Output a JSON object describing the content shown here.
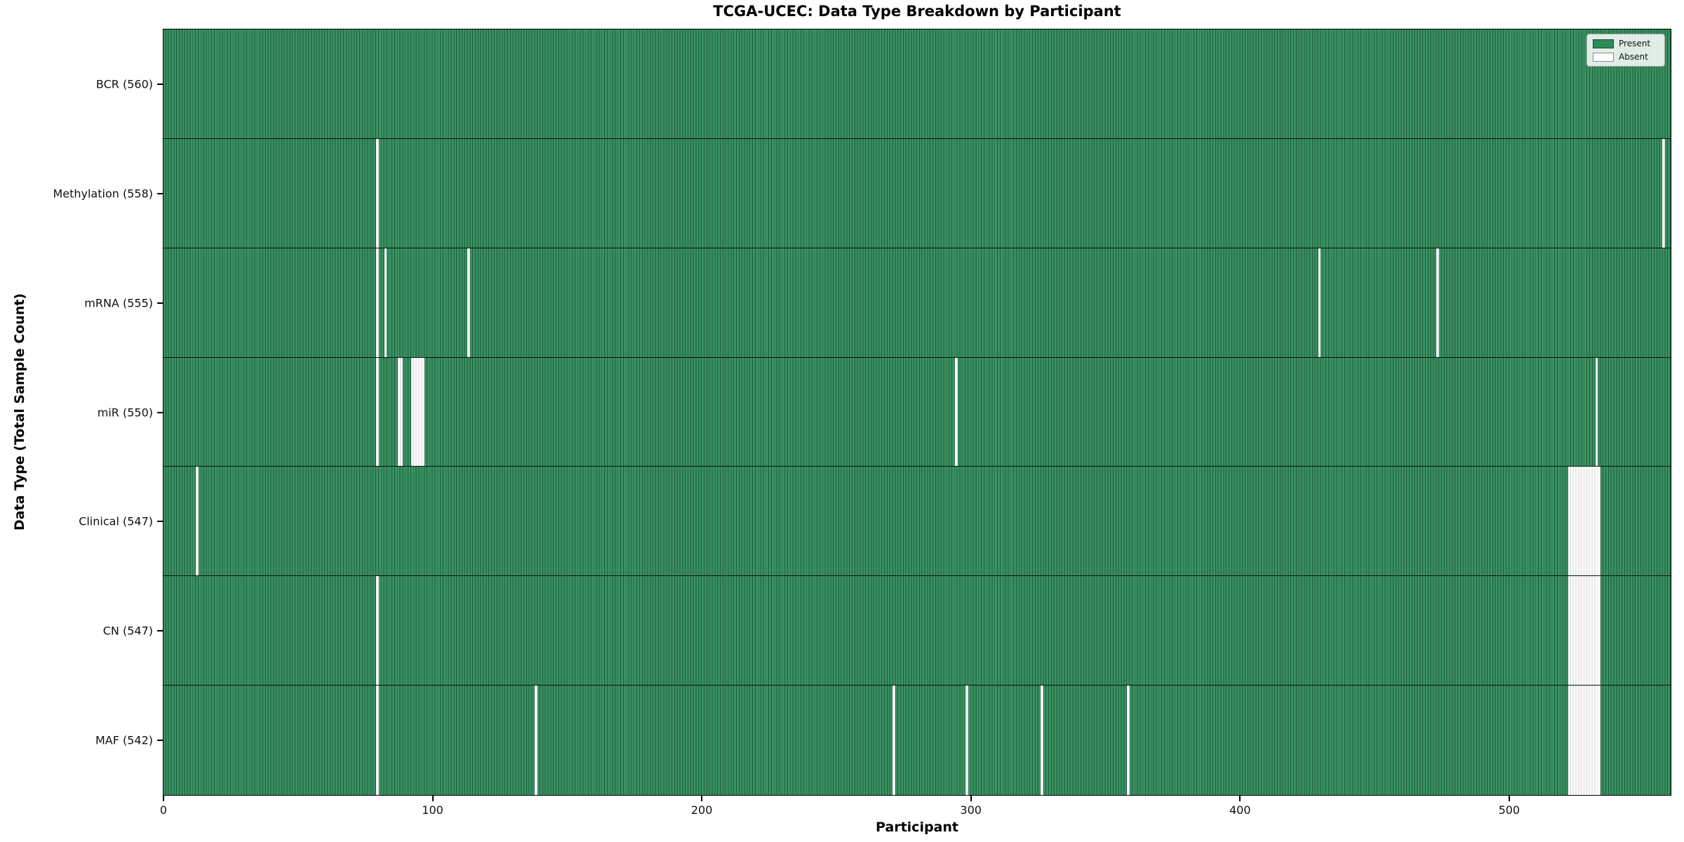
{
  "chart_data": {
    "type": "heatmap",
    "title": "TCGA-UCEC: Data Type Breakdown by Participant",
    "xlabel": "Participant",
    "ylabel": "Data Type (Total Sample Count)",
    "x_ticks": [
      0,
      100,
      200,
      300,
      400,
      500
    ],
    "x_range": [
      0,
      560
    ],
    "total_participants": 560,
    "grid": false,
    "legend": {
      "position": "upper right",
      "entries": [
        {
          "label": "Present",
          "color": "#2E8B57"
        },
        {
          "label": "Absent",
          "color": "#ffffff"
        }
      ]
    },
    "colors": {
      "present_fill": "#3a9162",
      "present_edge": "#1e5d3b",
      "absent_fill": "#ffffff",
      "absent_edge": "#d2d2d2",
      "row_divider": "#000000"
    },
    "rows": [
      {
        "name": "BCR",
        "label": "BCR (560)",
        "present_count": 560,
        "absent_participants": []
      },
      {
        "name": "Methylation",
        "label": "Methylation (558)",
        "present_count": 558,
        "absent_participants": [
          79,
          557
        ]
      },
      {
        "name": "mRNA",
        "label": "mRNA (555)",
        "present_count": 555,
        "absent_participants": [
          79,
          82,
          113,
          429,
          473
        ]
      },
      {
        "name": "miR",
        "label": "miR (550)",
        "present_count": 550,
        "absent_participants": [
          79,
          87,
          88,
          92,
          93,
          94,
          95,
          96,
          294,
          532
        ]
      },
      {
        "name": "Clinical",
        "label": "Clinical (547)",
        "present_count": 547,
        "absent_participants": [
          12,
          522,
          523,
          524,
          525,
          526,
          527,
          528,
          529,
          530,
          531,
          532,
          533
        ]
      },
      {
        "name": "CN",
        "label": "CN (547)",
        "present_count": 547,
        "absent_participants": [
          79,
          522,
          523,
          524,
          525,
          526,
          527,
          528,
          529,
          530,
          531,
          532,
          533
        ]
      },
      {
        "name": "MAF",
        "label": "MAF (542)",
        "present_count": 542,
        "absent_participants": [
          79,
          138,
          271,
          298,
          326,
          358,
          522,
          523,
          524,
          525,
          526,
          527,
          528,
          529,
          530,
          531,
          532,
          533
        ]
      }
    ]
  }
}
